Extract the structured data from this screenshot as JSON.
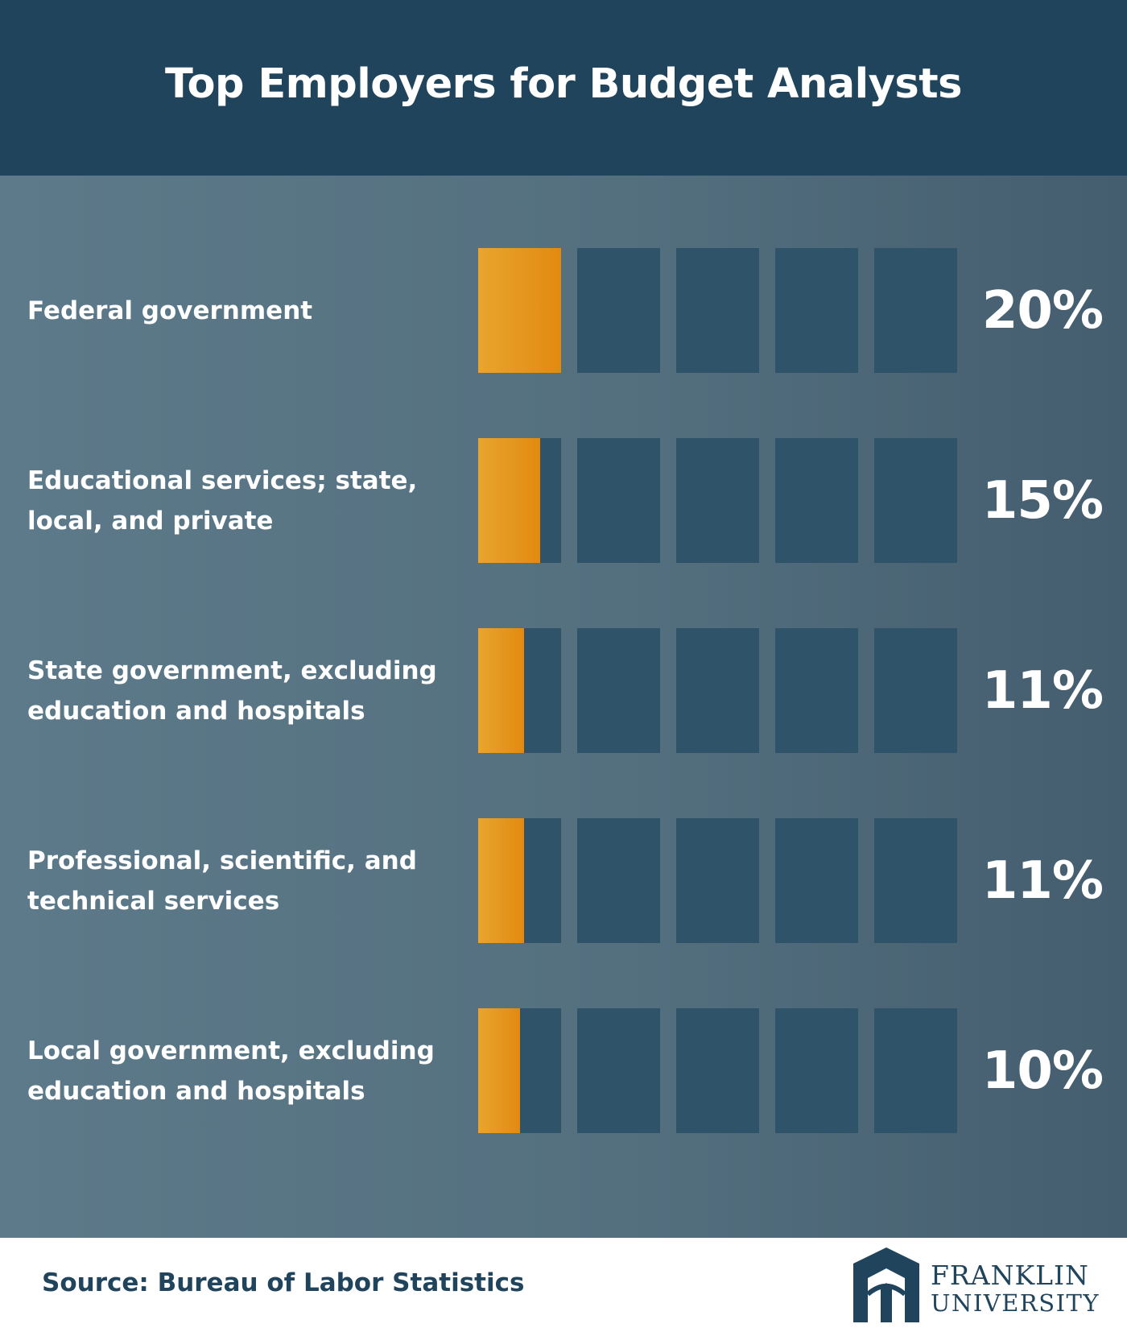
{
  "header": {
    "title": "Top Employers for Budget Analysts"
  },
  "chart_data": {
    "type": "bar",
    "title": "Top Employers for Budget Analysts",
    "max_value": 100,
    "blocks": 5,
    "categories": [
      [
        "Federal government"
      ],
      [
        "Educational services; state,",
        "local, and private"
      ],
      [
        "State government, excluding",
        "education and hospitals"
      ],
      [
        "Professional, scientific, and",
        "technical services"
      ],
      [
        "Local government, excluding",
        "education and hospitals"
      ]
    ],
    "values": [
      20,
      15,
      11,
      11,
      10
    ],
    "value_labels": [
      "20%",
      "15%",
      "11%",
      "11%",
      "10%"
    ]
  },
  "footer": {
    "source": "Source: Bureau of Labor Statistics",
    "logo_line1": "FRANKLIN",
    "logo_line2": "UNIVERSITY"
  },
  "colors": {
    "header": "#21445d",
    "block_empty": "#2f5369",
    "fill_start": "#e8a52f",
    "fill_end": "#e28a0f"
  }
}
